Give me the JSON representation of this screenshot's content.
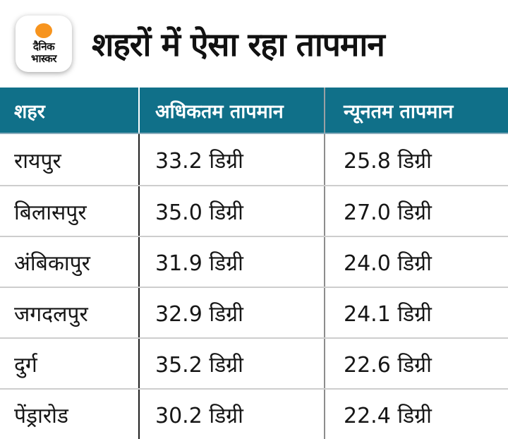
{
  "brand": {
    "logo_line1": "दैनिक",
    "logo_line2": "भास्कर",
    "logo_circle_color": "#F7941E"
  },
  "title": "शहरों में ऐसा रहा तापमान",
  "table": {
    "header_bg": "#107089",
    "header_text_color": "#FFFFFF",
    "headers": [
      "शहर",
      "अधिकतम तापमान",
      "न्यूनतम तापमान"
    ],
    "rows": [
      {
        "city": "रायपुर",
        "max": "33.2 डिग्री",
        "min": "25.8 डिग्री"
      },
      {
        "city": "बिलासपुर",
        "max": "35.0 डिग्री",
        "min": "27.0 डिग्री"
      },
      {
        "city": "अंबिकापुर",
        "max": "31.9 डिग्री",
        "min": "24.0 डिग्री"
      },
      {
        "city": "जगदलपुर",
        "max": "32.9 डिग्री",
        "min": "24.1 डिग्री"
      },
      {
        "city": "दुर्ग",
        "max": "35.2 डिग्री",
        "min": "22.6 डिग्री"
      },
      {
        "city": "पेंड्रारोड",
        "max": "30.2 डिग्री",
        "min": "22.4 डिग्री"
      }
    ]
  },
  "chart_data": {
    "type": "table",
    "title": "शहरों में ऐसा रहा तापमान",
    "columns": [
      "शहर",
      "अधिकतम तापमान",
      "न्यूनतम तापमान"
    ],
    "unit": "डिग्री",
    "rows": [
      [
        "रायपुर",
        33.2,
        25.8
      ],
      [
        "बिलासपुर",
        35.0,
        27.0
      ],
      [
        "अंबिकापुर",
        31.9,
        24.0
      ],
      [
        "जगदलपुर",
        32.9,
        24.1
      ],
      [
        "दुर्ग",
        35.2,
        22.6
      ],
      [
        "पेंड्रारोड",
        30.2,
        22.4
      ]
    ]
  }
}
